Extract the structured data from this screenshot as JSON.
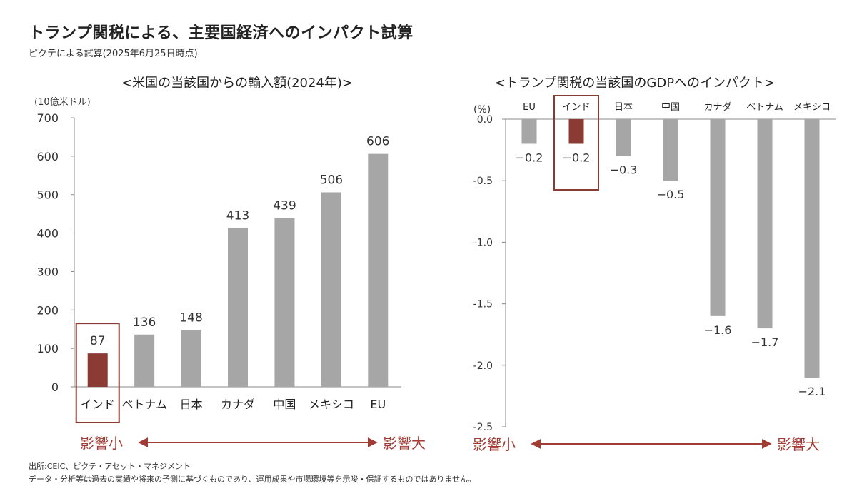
{
  "page": {
    "title": "トランプ関税による、主要国経済へのインパクト試算",
    "subtitle": "ピクテによる試算(2025年6月25日時点)",
    "footnote_source": "出所:CEIC、ピクテ・アセット・マネジメント",
    "footnote_disclaimer": "データ・分析等は過去の実績や将来の予測に基づくものであり、運用成果や市場環境等を示唆・保証するものではありません。"
  },
  "colors": {
    "bar": "#a6a6a6",
    "highlight": "#8b3a34",
    "accent_text": "#a33b35",
    "axis": "#888888"
  },
  "chart_data": [
    {
      "type": "bar",
      "title": "<米国の当該国からの輸入額(2024年)>",
      "ylabel": "(10億米ドル)",
      "categories": [
        "インド",
        "ベトナム",
        "日本",
        "カナダ",
        "中国",
        "メキシコ",
        "EU"
      ],
      "values": [
        87,
        136,
        148,
        413,
        439,
        506,
        606
      ],
      "ylim": [
        0,
        700
      ],
      "yticks": [
        0,
        100,
        200,
        300,
        400,
        500,
        600,
        700
      ],
      "highlight_index": 0,
      "grid": false,
      "impact_small_label": "影響小",
      "impact_large_label": "影響大"
    },
    {
      "type": "bar",
      "title": "<トランプ関税の当該国のGDPへのインパクト>",
      "ylabel": "(%)",
      "categories": [
        "EU",
        "インド",
        "日本",
        "中国",
        "カナダ",
        "ベトナム",
        "メキシコ"
      ],
      "values": [
        -0.2,
        -0.2,
        -0.3,
        -0.5,
        -1.6,
        -1.7,
        -2.1
      ],
      "value_labels": [
        "−0.2",
        "−0.2",
        "−0.3",
        "−0.5",
        "−1.6",
        "−1.7",
        "−2.1"
      ],
      "ylim": [
        -2.5,
        0
      ],
      "yticks": [
        0,
        -0.5,
        -1.0,
        -1.5,
        -2.0,
        -2.5
      ],
      "ytick_labels": [
        "0.0",
        "-0.5",
        "-1.0",
        "-1.5",
        "-2.0",
        "-2.5"
      ],
      "highlight_index": 1,
      "grid": false,
      "impact_small_label": "影響小",
      "impact_large_label": "影響大"
    }
  ]
}
